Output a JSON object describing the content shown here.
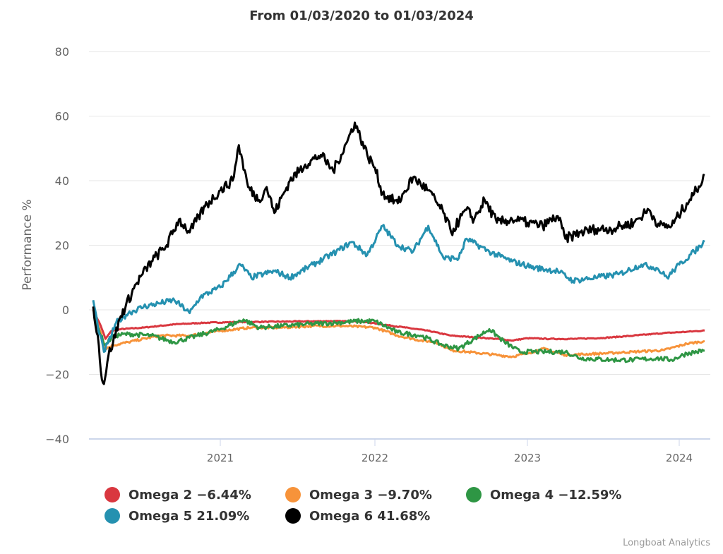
{
  "chart_data": {
    "type": "line",
    "title": "From 01/03/2020 to 01/03/2024",
    "xlabel": "",
    "ylabel": "Performance %",
    "xlim": [
      2020.17,
      2024.17
    ],
    "ylim": [
      -40,
      80
    ],
    "yticks": [
      80,
      60,
      40,
      20,
      0,
      -20,
      -40
    ],
    "xticks": [
      {
        "value": 2021.0,
        "label": "2021"
      },
      {
        "value": 2022.0,
        "label": "2022"
      },
      {
        "value": 2023.0,
        "label": "2023"
      },
      {
        "value": 2024.0,
        "label": "2024"
      }
    ],
    "grid": true,
    "legend_position": "bottom",
    "series": [
      {
        "name": "Omega 2",
        "final_label": "Omega 2 -6.44%",
        "color": "#d9373f",
        "points": [
          [
            2020.17,
            0
          ],
          [
            2020.22,
            -5
          ],
          [
            2020.25,
            -9
          ],
          [
            2020.29,
            -6.5
          ],
          [
            2020.35,
            -6
          ],
          [
            2020.5,
            -5.5
          ],
          [
            2020.7,
            -4.5
          ],
          [
            2020.9,
            -4
          ],
          [
            2021.1,
            -3.8
          ],
          [
            2021.3,
            -3.7
          ],
          [
            2021.5,
            -3.6
          ],
          [
            2021.7,
            -3.5
          ],
          [
            2021.9,
            -3.6
          ],
          [
            2022.0,
            -4.2
          ],
          [
            2022.2,
            -5.5
          ],
          [
            2022.35,
            -6.5
          ],
          [
            2022.5,
            -8
          ],
          [
            2022.65,
            -8.5
          ],
          [
            2022.8,
            -9
          ],
          [
            2022.9,
            -9.5
          ],
          [
            2023.0,
            -8.8
          ],
          [
            2023.15,
            -9
          ],
          [
            2023.3,
            -9
          ],
          [
            2023.5,
            -8.7
          ],
          [
            2023.7,
            -8
          ],
          [
            2023.9,
            -7.2
          ],
          [
            2024.05,
            -6.8
          ],
          [
            2024.17,
            -6.44
          ]
        ]
      },
      {
        "name": "Omega 3",
        "final_label": "Omega 3 -9.70%",
        "color": "#f7933a",
        "points": [
          [
            2020.17,
            0
          ],
          [
            2020.22,
            -7
          ],
          [
            2020.25,
            -12
          ],
          [
            2020.3,
            -11
          ],
          [
            2020.4,
            -10
          ],
          [
            2020.6,
            -8
          ],
          [
            2020.8,
            -8
          ],
          [
            2021.0,
            -6.5
          ],
          [
            2021.2,
            -5.5
          ],
          [
            2021.4,
            -5.5
          ],
          [
            2021.6,
            -5
          ],
          [
            2021.8,
            -5
          ],
          [
            2022.0,
            -5.5
          ],
          [
            2022.15,
            -8
          ],
          [
            2022.3,
            -9.5
          ],
          [
            2022.4,
            -10
          ],
          [
            2022.5,
            -12.5
          ],
          [
            2022.6,
            -13
          ],
          [
            2022.8,
            -14
          ],
          [
            2022.9,
            -14.5
          ],
          [
            2023.0,
            -13.5
          ],
          [
            2023.1,
            -12
          ],
          [
            2023.25,
            -14
          ],
          [
            2023.5,
            -13.5
          ],
          [
            2023.7,
            -13
          ],
          [
            2023.9,
            -12.5
          ],
          [
            2024.05,
            -10.5
          ],
          [
            2024.17,
            -9.7
          ]
        ]
      },
      {
        "name": "Omega 4",
        "final_label": "Omega 4 -12.59%",
        "color": "#2e9644",
        "points": [
          [
            2020.17,
            0
          ],
          [
            2020.22,
            -8
          ],
          [
            2020.25,
            -11
          ],
          [
            2020.3,
            -8
          ],
          [
            2020.4,
            -7.5
          ],
          [
            2020.55,
            -8
          ],
          [
            2020.7,
            -10
          ],
          [
            2020.85,
            -8
          ],
          [
            2021.0,
            -6
          ],
          [
            2021.15,
            -3
          ],
          [
            2021.25,
            -5.5
          ],
          [
            2021.4,
            -5
          ],
          [
            2021.55,
            -4.5
          ],
          [
            2021.75,
            -4
          ],
          [
            2021.9,
            -3.5
          ],
          [
            2022.0,
            -3.5
          ],
          [
            2022.15,
            -7
          ],
          [
            2022.3,
            -8
          ],
          [
            2022.45,
            -11
          ],
          [
            2022.55,
            -12
          ],
          [
            2022.65,
            -9
          ],
          [
            2022.75,
            -6
          ],
          [
            2022.85,
            -10
          ],
          [
            2022.95,
            -13
          ],
          [
            2023.1,
            -13
          ],
          [
            2023.25,
            -13
          ],
          [
            2023.35,
            -15
          ],
          [
            2023.55,
            -15.5
          ],
          [
            2023.7,
            -15.5
          ],
          [
            2023.85,
            -15
          ],
          [
            2023.95,
            -15.5
          ],
          [
            2024.05,
            -13.5
          ],
          [
            2024.17,
            -12.59
          ]
        ]
      },
      {
        "name": "Omega 5",
        "final_label": "Omega 5 21.09%",
        "color": "#2591b0",
        "points": [
          [
            2020.17,
            3
          ],
          [
            2020.2,
            -5
          ],
          [
            2020.24,
            -13
          ],
          [
            2020.27,
            -10
          ],
          [
            2020.32,
            -4
          ],
          [
            2020.4,
            -1
          ],
          [
            2020.5,
            1
          ],
          [
            2020.6,
            2
          ],
          [
            2020.7,
            3
          ],
          [
            2020.8,
            -1
          ],
          [
            2020.87,
            4
          ],
          [
            2021.0,
            7
          ],
          [
            2021.13,
            14
          ],
          [
            2021.2,
            10
          ],
          [
            2021.35,
            12
          ],
          [
            2021.45,
            10
          ],
          [
            2021.6,
            14
          ],
          [
            2021.75,
            18
          ],
          [
            2021.85,
            21
          ],
          [
            2021.95,
            17
          ],
          [
            2022.05,
            26
          ],
          [
            2022.15,
            20
          ],
          [
            2022.25,
            18
          ],
          [
            2022.35,
            26
          ],
          [
            2022.45,
            16
          ],
          [
            2022.55,
            16
          ],
          [
            2022.6,
            22
          ],
          [
            2022.75,
            18
          ],
          [
            2022.9,
            15
          ],
          [
            2023.05,
            13
          ],
          [
            2023.2,
            12
          ],
          [
            2023.3,
            9
          ],
          [
            2023.45,
            10
          ],
          [
            2023.6,
            11
          ],
          [
            2023.75,
            14
          ],
          [
            2023.85,
            13
          ],
          [
            2023.92,
            10
          ],
          [
            2024.0,
            14
          ],
          [
            2024.1,
            18
          ],
          [
            2024.17,
            21.09
          ]
        ]
      },
      {
        "name": "Omega 6",
        "final_label": "Omega 6 41.68%",
        "color": "#000000",
        "points": [
          [
            2020.17,
            1
          ],
          [
            2020.2,
            -8
          ],
          [
            2020.22,
            -19
          ],
          [
            2020.24,
            -23
          ],
          [
            2020.27,
            -14
          ],
          [
            2020.3,
            -10
          ],
          [
            2020.35,
            -2
          ],
          [
            2020.45,
            8
          ],
          [
            2020.55,
            15
          ],
          [
            2020.65,
            20
          ],
          [
            2020.73,
            28
          ],
          [
            2020.8,
            24
          ],
          [
            2020.9,
            32
          ],
          [
            2021.0,
            37
          ],
          [
            2021.08,
            40
          ],
          [
            2021.12,
            51
          ],
          [
            2021.18,
            38
          ],
          [
            2021.25,
            34
          ],
          [
            2021.3,
            38
          ],
          [
            2021.35,
            30
          ],
          [
            2021.45,
            40
          ],
          [
            2021.55,
            45
          ],
          [
            2021.65,
            48
          ],
          [
            2021.73,
            43
          ],
          [
            2021.82,
            52
          ],
          [
            2021.87,
            58
          ],
          [
            2021.95,
            48
          ],
          [
            2022.0,
            44
          ],
          [
            2022.05,
            36
          ],
          [
            2022.15,
            33
          ],
          [
            2022.25,
            41
          ],
          [
            2022.35,
            37
          ],
          [
            2022.45,
            30
          ],
          [
            2022.5,
            24
          ],
          [
            2022.6,
            31
          ],
          [
            2022.65,
            28
          ],
          [
            2022.72,
            34
          ],
          [
            2022.8,
            27
          ],
          [
            2022.9,
            28
          ],
          [
            2023.0,
            27
          ],
          [
            2023.1,
            26
          ],
          [
            2023.2,
            29
          ],
          [
            2023.25,
            22
          ],
          [
            2023.35,
            24
          ],
          [
            2023.45,
            25
          ],
          [
            2023.55,
            25
          ],
          [
            2023.7,
            27
          ],
          [
            2023.8,
            31
          ],
          [
            2023.87,
            26
          ],
          [
            2023.95,
            26
          ],
          [
            2024.05,
            33
          ],
          [
            2024.1,
            36
          ],
          [
            2024.17,
            41.68
          ]
        ]
      }
    ]
  },
  "credits": "Longboat Analytics"
}
